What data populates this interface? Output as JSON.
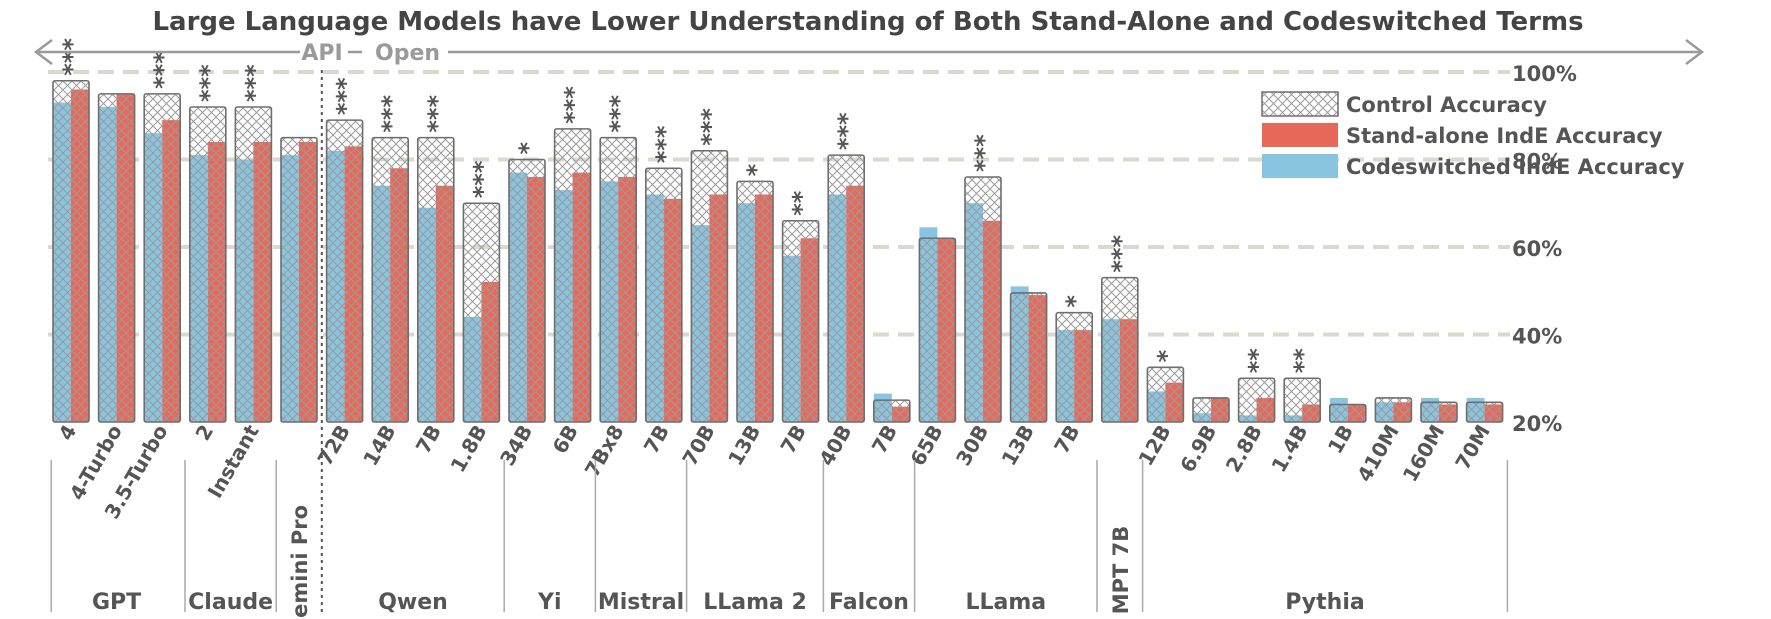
{
  "chart_data": {
    "type": "bar",
    "title": "Large Language Models have Lower Understanding of Both Stand-Alone and Codeswitched Terms",
    "ylim": [
      20,
      100
    ],
    "yticks": [
      "100%",
      "80%",
      "60%",
      "40%",
      "20%"
    ],
    "ytick_values": [
      100,
      80,
      60,
      40,
      20
    ],
    "grid": true,
    "legend_position": "top-right",
    "legend": [
      {
        "name": "Control Accuracy",
        "style": "crosshatch"
      },
      {
        "name": "Stand-alone IndE Accuracy",
        "color": "#e8695a"
      },
      {
        "name": "Codeswitched IndE Accuracy",
        "color": "#89c4e1"
      }
    ],
    "api_label": "API",
    "open_label": "Open",
    "groups": [
      {
        "name": "GPT",
        "models": [
          {
            "label": "4",
            "control": 98,
            "standalone": 96,
            "codeswitched": 93,
            "sig": "***"
          },
          {
            "label": "4-Turbo",
            "control": 95,
            "standalone": 95,
            "codeswitched": 92,
            "sig": ""
          },
          {
            "label": "3.5-Turbo",
            "control": 95,
            "standalone": 89,
            "codeswitched": 86,
            "sig": "***"
          }
        ]
      },
      {
        "name": "Claude",
        "models": [
          {
            "label": "2",
            "control": 92,
            "standalone": 84,
            "codeswitched": 81,
            "sig": "***"
          },
          {
            "label": "Instant",
            "control": 92,
            "standalone": 84,
            "codeswitched": 80,
            "sig": "***"
          }
        ]
      },
      {
        "name": "Gemini Pro",
        "models": [
          {
            "label": "",
            "control": 85,
            "standalone": 84,
            "codeswitched": 81,
            "sig": ""
          }
        ]
      },
      {
        "name": "Qwen",
        "models": [
          {
            "label": "72B",
            "control": 89,
            "standalone": 83,
            "codeswitched": 82,
            "sig": "***"
          },
          {
            "label": "14B",
            "control": 85,
            "standalone": 78,
            "codeswitched": 74,
            "sig": "***"
          },
          {
            "label": "7B",
            "control": 85,
            "standalone": 74,
            "codeswitched": 69,
            "sig": "***"
          },
          {
            "label": "1.8B",
            "control": 70,
            "standalone": 52,
            "codeswitched": 44,
            "sig": "***"
          }
        ]
      },
      {
        "name": "Yi",
        "models": [
          {
            "label": "34B",
            "control": 80,
            "standalone": 76,
            "codeswitched": 77,
            "sig": "*"
          },
          {
            "label": "6B",
            "control": 87,
            "standalone": 77,
            "codeswitched": 73,
            "sig": "***"
          }
        ]
      },
      {
        "name": "Mistral",
        "models": [
          {
            "label": "7Bx8",
            "control": 85,
            "standalone": 76,
            "codeswitched": 75,
            "sig": "***"
          },
          {
            "label": "7B",
            "control": 78,
            "standalone": 71,
            "codeswitched": 72,
            "sig": "***"
          }
        ]
      },
      {
        "name": "LLama 2",
        "models": [
          {
            "label": "70B",
            "control": 82,
            "standalone": 72,
            "codeswitched": 65,
            "sig": "***"
          },
          {
            "label": "13B",
            "control": 75,
            "standalone": 72,
            "codeswitched": 70,
            "sig": "*"
          },
          {
            "label": "7B",
            "control": 66,
            "standalone": 62,
            "codeswitched": 58,
            "sig": "**"
          }
        ]
      },
      {
        "name": "Falcon",
        "models": [
          {
            "label": "40B",
            "control": 81,
            "standalone": 74,
            "codeswitched": 72,
            "sig": "***"
          },
          {
            "label": "7B",
            "control": 25,
            "standalone": 23.5,
            "codeswitched": 26.5,
            "sig": ""
          }
        ]
      },
      {
        "name": "LLama",
        "models": [
          {
            "label": "65B",
            "control": 62,
            "standalone": 62,
            "codeswitched": 64.5,
            "sig": ""
          },
          {
            "label": "30B",
            "control": 76,
            "standalone": 66,
            "codeswitched": 70,
            "sig": "***"
          },
          {
            "label": "13B",
            "control": 49.5,
            "standalone": 49,
            "codeswitched": 51,
            "sig": ""
          },
          {
            "label": "7B",
            "control": 45,
            "standalone": 41,
            "codeswitched": 41,
            "sig": "*"
          }
        ]
      },
      {
        "name": "MPT 7B",
        "models": [
          {
            "label": "",
            "control": 53,
            "standalone": 43.5,
            "codeswitched": 43.5,
            "sig": "***"
          }
        ]
      },
      {
        "name": "Pythia",
        "models": [
          {
            "label": "12B",
            "control": 32.5,
            "standalone": 29,
            "codeswitched": 27,
            "sig": "*"
          },
          {
            "label": "6.9B",
            "control": 25.5,
            "standalone": 25.5,
            "codeswitched": 22,
            "sig": ""
          },
          {
            "label": "2.8B",
            "control": 30,
            "standalone": 25.5,
            "codeswitched": 21.5,
            "sig": "**"
          },
          {
            "label": "1.4B",
            "control": 30,
            "standalone": 24,
            "codeswitched": 21.5,
            "sig": "**"
          },
          {
            "label": "1B",
            "control": 24,
            "standalone": 24,
            "codeswitched": 25.5,
            "sig": ""
          },
          {
            "label": "410M",
            "control": 25.5,
            "standalone": 24.5,
            "codeswitched": 24.5,
            "sig": ""
          },
          {
            "label": "160M",
            "control": 24.5,
            "standalone": 24,
            "codeswitched": 25.5,
            "sig": ""
          },
          {
            "label": "70M",
            "control": 24.5,
            "standalone": 24,
            "codeswitched": 25.5,
            "sig": ""
          }
        ]
      }
    ]
  }
}
